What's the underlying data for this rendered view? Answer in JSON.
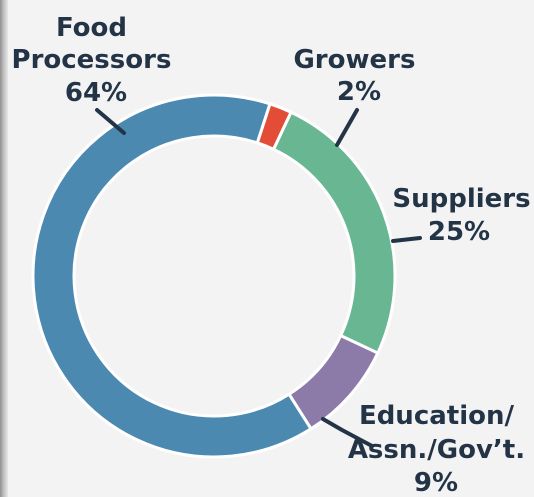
{
  "chart_data": {
    "type": "pie",
    "variant": "donut",
    "series": [
      {
        "name": "Food Processors",
        "value": 64,
        "label_lines": [
          "Food",
          "Processors"
        ],
        "percent_label": "64%",
        "color": "#4b89b0"
      },
      {
        "name": "Growers",
        "value": 2,
        "label_lines": [
          "Growers"
        ],
        "percent_label": "2%",
        "color": "#e34c36"
      },
      {
        "name": "Suppliers",
        "value": 25,
        "label_lines": [
          "Suppliers"
        ],
        "percent_label": "25%",
        "color": "#68b692"
      },
      {
        "name": "Education/Assn./Gov't.",
        "value": 9,
        "label_lines": [
          "Education/",
          "Assn./Gov’t."
        ],
        "percent_label": "9%",
        "color": "#8c7aa8"
      }
    ],
    "legend": "none",
    "grid": false
  },
  "colors": {
    "text": "#243447",
    "background": "#f3f3f3",
    "leader": "#243447",
    "slice_border": "#ffffff"
  }
}
